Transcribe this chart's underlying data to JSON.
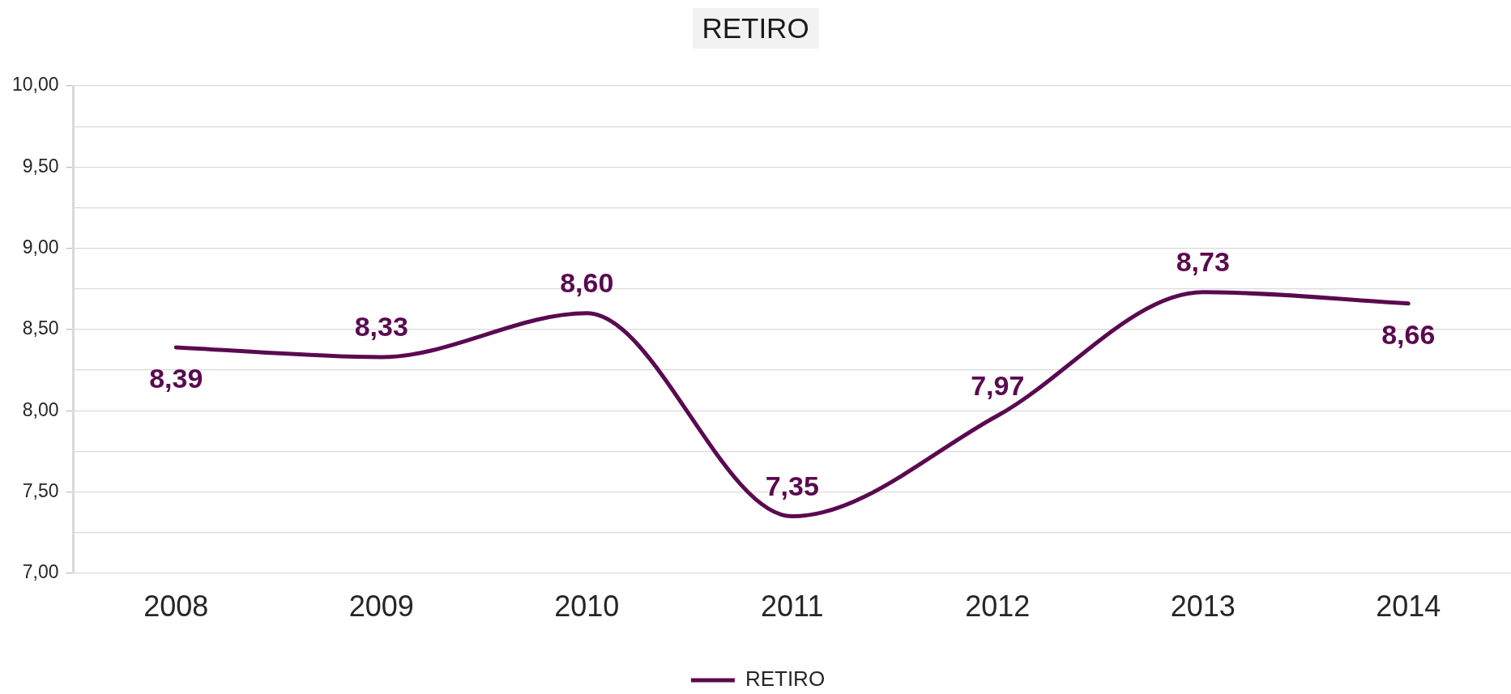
{
  "chart_data": {
    "type": "line",
    "title": "RETIRO",
    "categories": [
      "2008",
      "2009",
      "2010",
      "2011",
      "2012",
      "2013",
      "2014"
    ],
    "series": [
      {
        "name": "RETIRO",
        "color": "#5a0a50",
        "values": [
          8.39,
          8.33,
          8.6,
          7.35,
          7.97,
          8.73,
          8.66
        ],
        "value_labels": [
          "8,39",
          "8,33",
          "8,60",
          "7,35",
          "7,97",
          "8,73",
          "8,66"
        ]
      }
    ],
    "ylim": [
      7,
      10
    ],
    "yticks": [
      {
        "value": 7,
        "label": "7,00"
      },
      {
        "value": 7.25,
        "label": null
      },
      {
        "value": 7.5,
        "label": "7,50"
      },
      {
        "value": 7.75,
        "label": null
      },
      {
        "value": 8,
        "label": "8,00"
      },
      {
        "value": 8.25,
        "label": null
      },
      {
        "value": 8.5,
        "label": "8,50"
      },
      {
        "value": 8.75,
        "label": null
      },
      {
        "value": 9,
        "label": "9,00"
      },
      {
        "value": 9.25,
        "label": null
      },
      {
        "value": 9.5,
        "label": "9,50"
      },
      {
        "value": 9.75,
        "label": null
      },
      {
        "value": 10,
        "label": "10,00"
      }
    ],
    "grid": "y",
    "legend": "bottom",
    "marker": "none"
  }
}
